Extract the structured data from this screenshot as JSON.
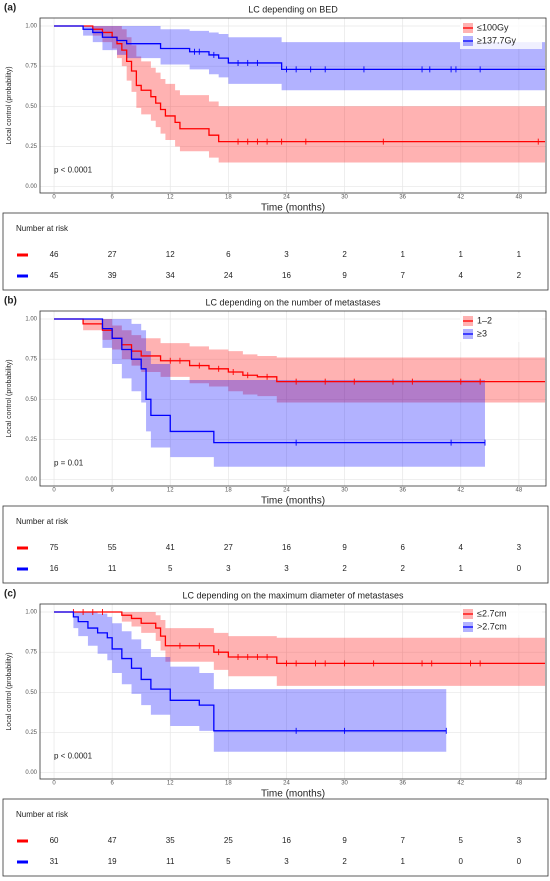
{
  "chart_data": [
    {
      "type": "km",
      "panel_label": "(a)",
      "title": "LC depending on BED",
      "x_label": "Time (months)",
      "y_label": "Local control (probability)",
      "annotation": "p < 0.0001",
      "xlim": [
        -1.45,
        50.8
      ],
      "xticks": [
        0,
        6,
        12,
        18,
        24,
        30,
        36,
        42,
        48
      ],
      "ylim": [
        -0.04,
        1.05
      ],
      "yticks": [
        {
          "value": 0,
          "label": "0.00"
        },
        {
          "value": 0.25,
          "label": "0.25"
        },
        {
          "value": 0.5,
          "label": "0.50"
        },
        {
          "value": 0.75,
          "label": "0.75"
        },
        {
          "value": 1,
          "label": "1.00"
        }
      ],
      "grid": true,
      "legend": "top-right",
      "series": [
        {
          "name": "≤100Gy",
          "color": "#ff0000",
          "x": [
            0,
            4,
            5,
            6,
            6.5,
            7,
            7.5,
            8,
            8.5,
            9,
            10,
            10.5,
            11,
            11.5,
            12.5,
            13,
            16,
            17,
            50.7
          ],
          "values": [
            1,
            0.98,
            0.96,
            0.93,
            0.89,
            0.85,
            0.78,
            0.72,
            0.63,
            0.6,
            0.56,
            0.52,
            0.48,
            0.44,
            0.4,
            0.36,
            0.32,
            0.28,
            0.28
          ],
          "upper": [
            1,
            1,
            1,
            1,
            1,
            0.98,
            0.93,
            0.88,
            0.81,
            0.78,
            0.74,
            0.71,
            0.67,
            0.64,
            0.6,
            0.57,
            0.53,
            0.5,
            0.5
          ],
          "lower": [
            1,
            0.94,
            0.9,
            0.86,
            0.8,
            0.75,
            0.66,
            0.59,
            0.49,
            0.45,
            0.41,
            0.37,
            0.33,
            0.29,
            0.25,
            0.22,
            0.18,
            0.15,
            0.15
          ],
          "censor_x": [
            19,
            20,
            21,
            22,
            23.5,
            26,
            34,
            50
          ]
        },
        {
          "name": "≥137.7Gy",
          "color": "#0000ff",
          "x": [
            0,
            3,
            4,
            5,
            6.5,
            7.5,
            11,
            14,
            16,
            17,
            18,
            23.5,
            50.7
          ],
          "values": [
            1,
            0.98,
            0.96,
            0.93,
            0.91,
            0.89,
            0.86,
            0.84,
            0.82,
            0.8,
            0.77,
            0.73,
            0.73
          ],
          "upper": [
            1,
            1,
            1,
            1,
            1,
            1,
            0.98,
            0.97,
            0.96,
            0.95,
            0.93,
            0.9,
            0.9
          ],
          "lower": [
            1,
            0.94,
            0.9,
            0.85,
            0.82,
            0.8,
            0.76,
            0.73,
            0.7,
            0.68,
            0.64,
            0.6,
            0.6
          ],
          "censor_x": [
            14.5,
            15,
            16.5,
            19,
            20,
            21,
            24,
            25,
            26.5,
            28,
            32,
            38,
            38.8,
            41,
            41.5,
            44
          ]
        }
      ],
      "risk_table": {
        "title": "Number at risk",
        "rows": [
          [
            46,
            27,
            12,
            6,
            3,
            2,
            1,
            1,
            1
          ],
          [
            45,
            39,
            34,
            24,
            16,
            9,
            7,
            4,
            2
          ]
        ]
      }
    },
    {
      "type": "km",
      "panel_label": "(b)",
      "title": "LC depending on the number of metastases",
      "x_label": "Time (months)",
      "y_label": "Local control (probability)",
      "annotation": "p = 0.01",
      "xlim": [
        -1.45,
        50.8
      ],
      "xticks": [
        0,
        6,
        12,
        18,
        24,
        30,
        36,
        42,
        48
      ],
      "ylim": [
        -0.04,
        1.05
      ],
      "yticks": [
        {
          "value": 0,
          "label": "0.00"
        },
        {
          "value": 0.25,
          "label": "0.25"
        },
        {
          "value": 0.5,
          "label": "0.50"
        },
        {
          "value": 0.75,
          "label": "0.75"
        },
        {
          "value": 1,
          "label": "1.00"
        }
      ],
      "grid": true,
      "legend": "top-right",
      "series": [
        {
          "name": "1–2",
          "color": "#ff0000",
          "x": [
            0,
            3,
            5,
            6,
            7,
            8,
            9,
            11,
            14,
            16,
            18,
            19.5,
            21,
            23,
            50.7
          ],
          "values": [
            1,
            0.97,
            0.93,
            0.88,
            0.84,
            0.8,
            0.77,
            0.74,
            0.71,
            0.69,
            0.67,
            0.65,
            0.64,
            0.61,
            0.61
          ],
          "upper": [
            1,
            1,
            1,
            0.96,
            0.93,
            0.9,
            0.88,
            0.85,
            0.83,
            0.81,
            0.8,
            0.78,
            0.77,
            0.76,
            0.76
          ],
          "lower": [
            1,
            0.93,
            0.87,
            0.81,
            0.75,
            0.71,
            0.67,
            0.64,
            0.6,
            0.58,
            0.55,
            0.53,
            0.52,
            0.48,
            0.48
          ],
          "censor_x": [
            12,
            13,
            15,
            17,
            18.5,
            20,
            22,
            25,
            28,
            31,
            35,
            37,
            42,
            44
          ]
        },
        {
          "name": "≥3",
          "color": "#0000ff",
          "x": [
            0,
            5,
            6,
            7,
            8,
            9,
            9.5,
            10,
            12,
            16.5,
            44.5
          ],
          "values": [
            1,
            0.94,
            0.88,
            0.81,
            0.75,
            0.69,
            0.5,
            0.4,
            0.3,
            0.23,
            0.23
          ],
          "upper": [
            1,
            1,
            1,
            1,
            0.97,
            0.93,
            0.8,
            0.72,
            0.62,
            0.62,
            0.62
          ],
          "lower": [
            1,
            0.82,
            0.72,
            0.63,
            0.55,
            0.48,
            0.3,
            0.2,
            0.14,
            0.08,
            0.08
          ],
          "censor_x": [
            25,
            41,
            44.5
          ]
        }
      ],
      "risk_table": {
        "title": "Number at risk",
        "rows": [
          [
            75,
            55,
            41,
            27,
            16,
            9,
            6,
            4,
            3
          ],
          [
            16,
            11,
            5,
            3,
            3,
            2,
            2,
            1,
            0
          ]
        ]
      }
    },
    {
      "type": "km",
      "panel_label": "(c)",
      "title": "LC depending on the maximum diameter of metastases",
      "x_label": "Time (months)",
      "y_label": "Local control (probability)",
      "annotation": "p < 0.0001",
      "xlim": [
        -1.45,
        50.8
      ],
      "xticks": [
        0,
        6,
        12,
        18,
        24,
        30,
        36,
        42,
        48
      ],
      "ylim": [
        -0.04,
        1.05
      ],
      "yticks": [
        {
          "value": 0,
          "label": "0.00"
        },
        {
          "value": 0.25,
          "label": "0.25"
        },
        {
          "value": 0.5,
          "label": "0.50"
        },
        {
          "value": 0.75,
          "label": "0.75"
        },
        {
          "value": 1,
          "label": "1.00"
        }
      ],
      "grid": true,
      "legend": "top-right",
      "series": [
        {
          "name": "≤2.7cm",
          "color": "#ff0000",
          "x": [
            0,
            7,
            8,
            9,
            10.5,
            11,
            11.5,
            16.5,
            18,
            23,
            50.7
          ],
          "values": [
            1,
            0.98,
            0.96,
            0.93,
            0.9,
            0.85,
            0.79,
            0.75,
            0.72,
            0.68,
            0.68
          ],
          "upper": [
            1,
            1,
            1,
            1,
            0.98,
            0.95,
            0.9,
            0.87,
            0.85,
            0.84,
            0.84
          ],
          "lower": [
            1,
            0.94,
            0.91,
            0.87,
            0.82,
            0.76,
            0.69,
            0.64,
            0.6,
            0.54,
            0.54
          ],
          "censor_x": [
            2,
            3,
            4,
            5,
            13,
            15,
            17,
            19,
            20,
            21,
            22,
            24,
            25,
            27,
            28,
            30,
            33,
            38,
            39,
            43,
            44
          ]
        },
        {
          "name": ">2.7cm",
          "color": "#0000ff",
          "x": [
            0,
            2,
            2.5,
            3.5,
            4.5,
            5.5,
            6,
            7,
            8,
            9,
            10,
            12,
            15,
            16.5,
            40.5
          ],
          "values": [
            1,
            0.97,
            0.94,
            0.9,
            0.87,
            0.84,
            0.77,
            0.71,
            0.65,
            0.58,
            0.52,
            0.45,
            0.42,
            0.26,
            0.26
          ],
          "upper": [
            1,
            1,
            1,
            1,
            0.99,
            0.97,
            0.93,
            0.88,
            0.83,
            0.77,
            0.72,
            0.66,
            0.62,
            0.52,
            0.52
          ],
          "lower": [
            1,
            0.9,
            0.85,
            0.79,
            0.74,
            0.7,
            0.62,
            0.55,
            0.49,
            0.42,
            0.36,
            0.29,
            0.26,
            0.13,
            0.13
          ],
          "censor_x": [
            25,
            30,
            40.5
          ]
        }
      ],
      "risk_table": {
        "title": "Number at risk",
        "rows": [
          [
            60,
            47,
            35,
            25,
            16,
            9,
            7,
            5,
            3
          ],
          [
            31,
            19,
            11,
            5,
            3,
            2,
            1,
            0,
            0
          ]
        ]
      }
    }
  ]
}
